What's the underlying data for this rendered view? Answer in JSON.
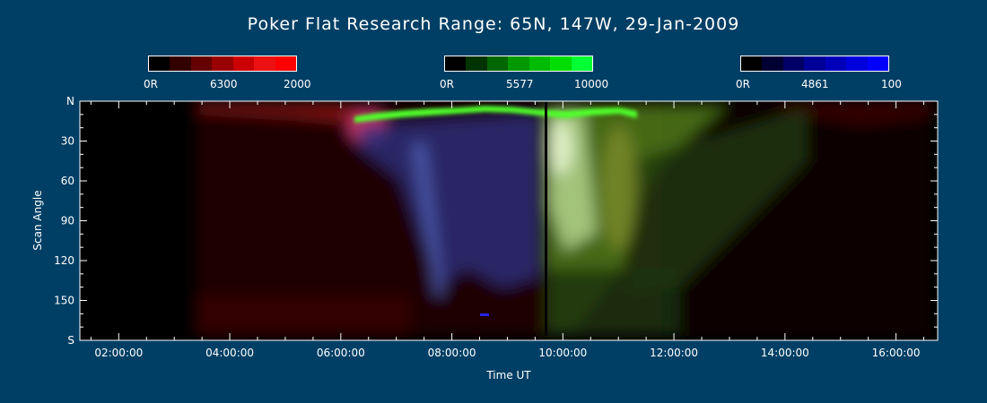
{
  "chart_data": {
    "type": "heatmap",
    "title": "Poker Flat Research Range: 65N, 147W, 29-Jan-2009",
    "xlabel": "Time UT",
    "ylabel": "Scan Angle",
    "x_ticks": [
      "02:00:00",
      "04:00:00",
      "06:00:00",
      "08:00:00",
      "10:00:00",
      "12:00:00",
      "14:00:00",
      "16:00:00"
    ],
    "x_tick_hours": [
      2,
      4,
      6,
      8,
      10,
      12,
      14,
      16
    ],
    "xlim_hours": [
      1.3,
      16.75
    ],
    "y_ticks": [
      "N",
      "30",
      "60",
      "90",
      "120",
      "150",
      "S"
    ],
    "y_tick_values": [
      0,
      30,
      60,
      90,
      120,
      150,
      180
    ],
    "ylim": [
      0,
      180
    ],
    "data_start_hour": 3.3,
    "colorbars": [
      {
        "name": "6300",
        "min_label": "0R",
        "mid_label": "6300",
        "max_label": "2000",
        "colors": [
          "#000000",
          "#330000",
          "#660000",
          "#990000",
          "#cc0000",
          "#ee1111",
          "#ff0000"
        ]
      },
      {
        "name": "5577",
        "min_label": "0R",
        "mid_label": "5577",
        "max_label": "10000",
        "colors": [
          "#000000",
          "#003300",
          "#006600",
          "#009900",
          "#00bb00",
          "#00dd00",
          "#00ff33"
        ]
      },
      {
        "name": "4861",
        "min_label": "0R",
        "mid_label": "4861",
        "max_label": "100",
        "colors": [
          "#000000",
          "#000033",
          "#000066",
          "#000099",
          "#0000bb",
          "#0000dd",
          "#0000ff"
        ]
      }
    ]
  }
}
